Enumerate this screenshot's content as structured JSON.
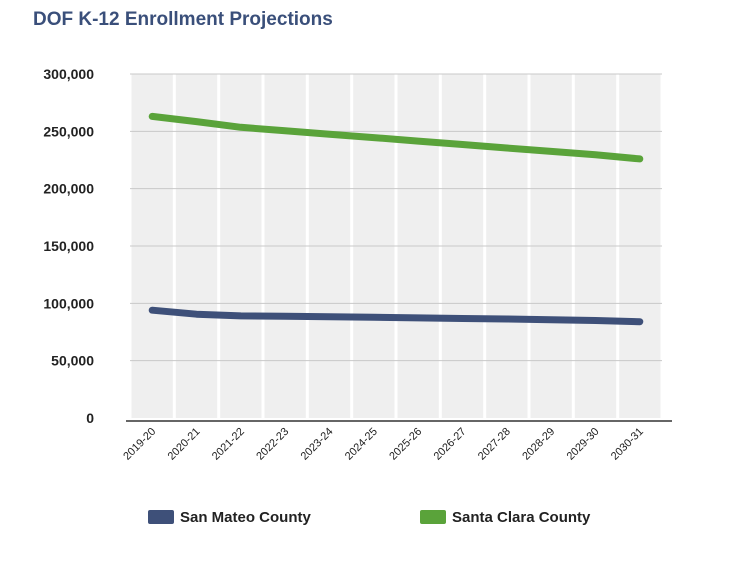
{
  "title": "DOF K-12 Enrollment Projections",
  "chart_data": {
    "type": "line",
    "title": "DOF K-12 Enrollment Projections",
    "xlabel": "",
    "ylabel": "",
    "categories": [
      "2019-20",
      "2020-21",
      "2021-22",
      "2022-23",
      "2023-24",
      "2024-25",
      "2025-26",
      "2026-27",
      "2027-28",
      "2028-29",
      "2029-30",
      "2030-31"
    ],
    "yticks": [
      "0",
      "50,000",
      "100,000",
      "150,000",
      "200,000",
      "250,000",
      "300,000"
    ],
    "ylim": [
      0,
      300000
    ],
    "grid": true,
    "legend_position": "bottom",
    "series": [
      {
        "name": "San Mateo County",
        "color": "#3e5079",
        "values": [
          94000,
          90500,
          89000,
          88800,
          88300,
          87800,
          87300,
          86800,
          86300,
          85700,
          85000,
          84000
        ]
      },
      {
        "name": "Santa Clara County",
        "color": "#5aa33a",
        "values": [
          263000,
          258500,
          253500,
          250500,
          247500,
          244500,
          241500,
          238500,
          235500,
          232500,
          229500,
          226000
        ]
      }
    ]
  }
}
